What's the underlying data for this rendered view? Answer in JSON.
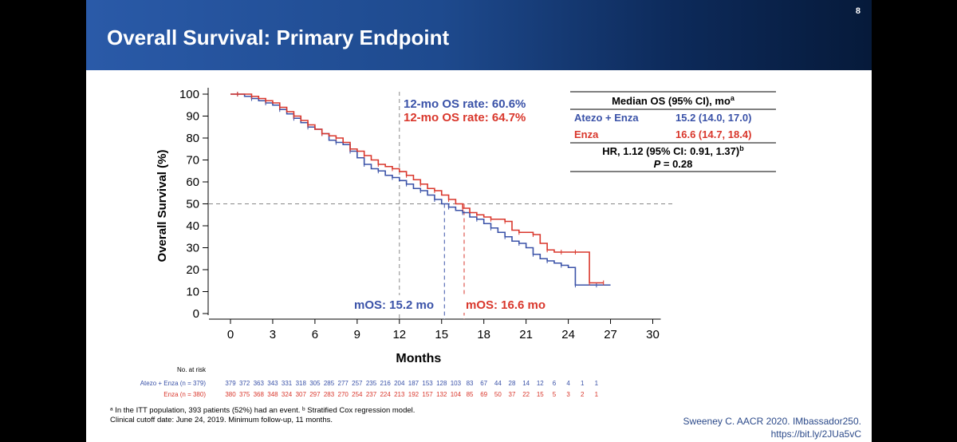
{
  "slide": {
    "title": "Overall Survival: Primary Endpoint",
    "page_number": "8",
    "footnote_line1": "ᵃ In the ITT population, 393 patients (52%) had an event. ᵇ Stratified Cox regression model.",
    "footnote_line2": "Clinical cutoff date: June 24, 2019. Minimum follow-up, 11 months.",
    "citation_line1": "Sweeney C. AACR 2020. IMbassador250.",
    "citation_line2": "https://bit.ly/2JUa5vC"
  },
  "colors": {
    "atezo_enza": "#3a52a8",
    "enza": "#d9372c",
    "header_start": "#2a5aa8",
    "header_end": "#061a3a"
  },
  "chart_data": {
    "type": "line",
    "subtype": "kaplan-meier",
    "xlabel": "Months",
    "ylabel": "Overall Survival (%)",
    "xlim": [
      0,
      30
    ],
    "ylim": [
      0,
      100
    ],
    "xticks": [
      0,
      3,
      6,
      9,
      12,
      15,
      18,
      21,
      24,
      27,
      30
    ],
    "yticks": [
      0,
      10,
      20,
      30,
      40,
      50,
      60,
      70,
      80,
      90,
      100
    ],
    "reference_lines": {
      "x": 12,
      "y": 50
    },
    "annotations": {
      "rate_atezo": "12-mo OS rate: 60.6%",
      "rate_enza": "12-mo OS rate: 64.7%",
      "mos_atezo": "mOS: 15.2 mo",
      "mos_enza": "mOS: 16.6 mo",
      "mos_atezo_value": 15.2,
      "mos_enza_value": 16.6
    },
    "series": [
      {
        "name": "Atezo + Enza",
        "color": "#3a52a8",
        "x": [
          0,
          0.5,
          1,
          1.5,
          2,
          2.5,
          3,
          3.5,
          4,
          4.5,
          5,
          5.5,
          6,
          6.5,
          7,
          7.5,
          8,
          8.5,
          9,
          9.5,
          10,
          10.5,
          11,
          11.5,
          12,
          12.5,
          13,
          13.5,
          14,
          14.5,
          15,
          15.5,
          16,
          16.5,
          17,
          17.5,
          18,
          18.5,
          19,
          19.5,
          20,
          20.5,
          21,
          21.5,
          22,
          22.5,
          23,
          23.5,
          24,
          24.5,
          25,
          26,
          27
        ],
        "y": [
          100,
          100,
          99,
          98,
          97,
          96,
          95,
          93,
          91,
          89,
          87,
          85,
          84,
          82,
          79,
          78,
          77,
          74,
          71,
          68,
          66,
          65,
          63,
          62,
          60.6,
          59,
          57,
          56,
          54,
          52,
          50,
          48.5,
          47,
          46,
          44,
          43,
          41,
          39,
          37,
          35,
          33,
          32,
          30,
          27,
          25,
          24,
          23,
          22,
          21,
          13,
          13,
          13,
          13
        ]
      },
      {
        "name": "Enza",
        "color": "#d9372c",
        "x": [
          0,
          0.5,
          1,
          1.5,
          2,
          2.5,
          3,
          3.5,
          4,
          4.5,
          5,
          5.5,
          6,
          6.5,
          7,
          7.5,
          8,
          8.5,
          9,
          9.5,
          10,
          10.5,
          11,
          11.5,
          12,
          12.5,
          13,
          13.5,
          14,
          14.5,
          15,
          15.5,
          16,
          16.5,
          17,
          17.5,
          18,
          18.5,
          19,
          19.5,
          20,
          20.5,
          21,
          21.5,
          22,
          22.5,
          23,
          23.5,
          24,
          24.5,
          25,
          25.5,
          26,
          26.5
        ],
        "y": [
          100,
          100,
          100,
          99,
          98,
          97,
          96,
          94,
          92,
          90,
          88,
          86,
          84,
          82,
          81,
          80,
          78,
          75,
          74,
          72,
          70,
          68,
          67,
          66,
          64.7,
          63,
          61,
          59,
          57,
          56,
          54,
          52,
          50,
          48,
          46,
          45,
          44,
          43,
          43,
          42,
          38,
          37,
          37,
          36,
          32,
          29,
          28,
          28,
          28,
          28,
          28,
          14,
          14,
          14
        ]
      }
    ],
    "hr_table": {
      "header": "Median OS (95% CI), mo",
      "header_sup": "a",
      "rows": [
        {
          "label": "Atezo + Enza",
          "value": "15.2 (14.0, 17.0)",
          "color": "#3a52a8"
        },
        {
          "label": "Enza",
          "value": "16.6 (14.7, 18.4)",
          "color": "#d9372c"
        }
      ],
      "hr_text": "HR, 1.12 (95% CI: 0.91, 1.37)",
      "hr_sup": "b",
      "p_label": "P",
      "p_value": " = 0.28"
    },
    "risk_table": {
      "title": "No. at risk",
      "times": [
        0,
        1,
        2,
        3,
        4,
        5,
        6,
        7,
        8,
        9,
        10,
        11,
        12,
        13,
        14,
        15,
        16,
        17,
        18,
        19,
        20,
        21,
        22,
        23,
        24,
        25,
        26,
        27
      ],
      "rows": [
        {
          "label": "Atezo + Enza (n = 379)",
          "color": "#3a52a8",
          "values": [
            "379",
            "372",
            "363",
            "343",
            "331",
            "318",
            "305",
            "285",
            "277",
            "257",
            "235",
            "216",
            "204",
            "187",
            "153",
            "128",
            "103",
            "83",
            "67",
            "44",
            "28",
            "14",
            "12",
            "6",
            "4",
            "1",
            "1",
            ""
          ]
        },
        {
          "label": "Enza (n = 380)",
          "color": "#d9372c",
          "values": [
            "380",
            "375",
            "368",
            "348",
            "324",
            "307",
            "297",
            "283",
            "270",
            "254",
            "237",
            "224",
            "213",
            "192",
            "157",
            "132",
            "104",
            "85",
            "69",
            "50",
            "37",
            "22",
            "15",
            "5",
            "3",
            "2",
            "1",
            ""
          ]
        }
      ]
    }
  }
}
